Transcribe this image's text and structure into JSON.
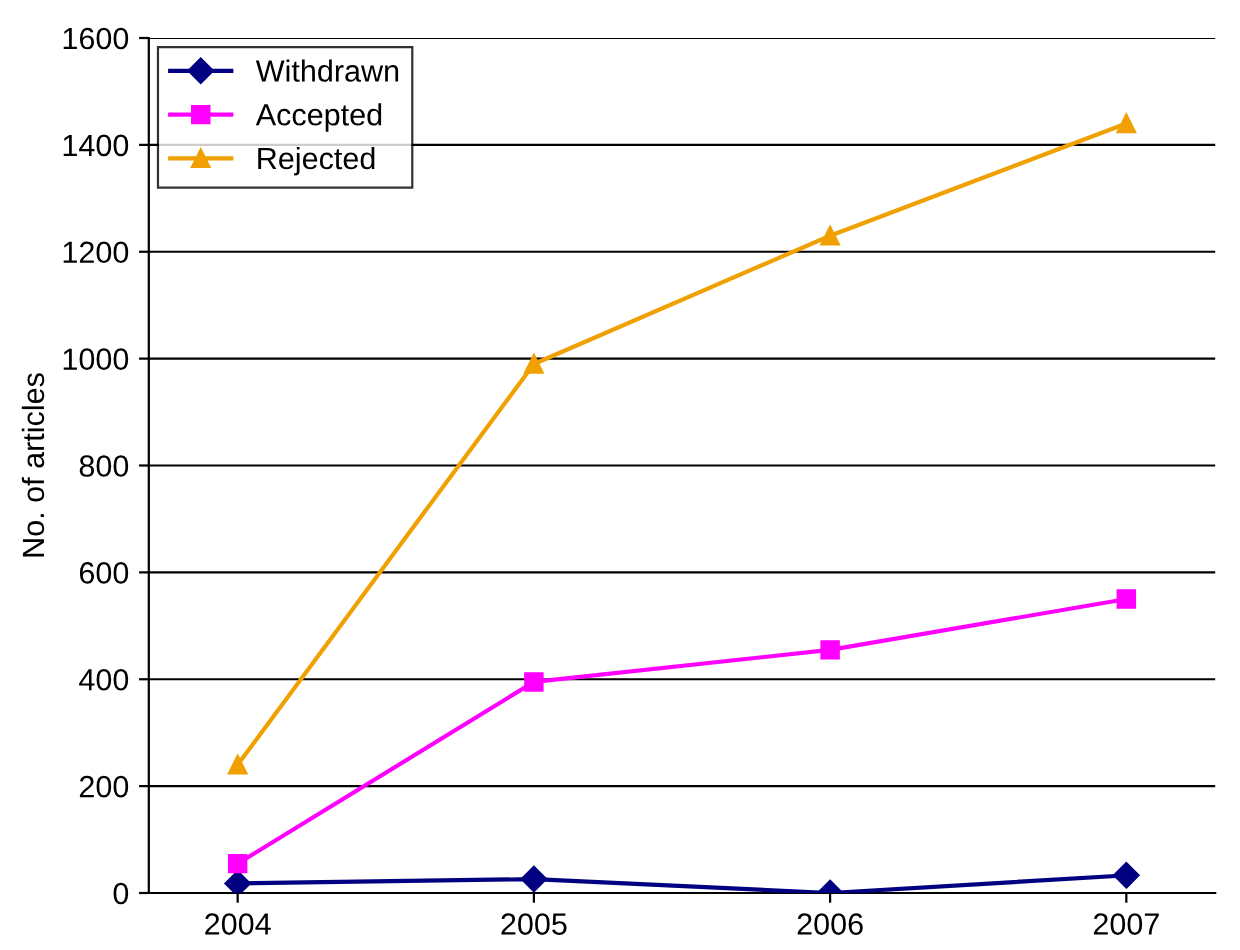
{
  "chart_data": {
    "type": "line",
    "ylabel": "No. of articles",
    "categories": [
      "2004",
      "2005",
      "2006",
      "2007"
    ],
    "series": [
      {
        "name": "Withdrawn",
        "color": "#000080",
        "marker": "diamond",
        "values": [
          18,
          26,
          0,
          33
        ]
      },
      {
        "name": "Accepted",
        "color": "#ff00ff",
        "marker": "square",
        "values": [
          55,
          395,
          455,
          550
        ]
      },
      {
        "name": "Rejected",
        "color": "#f0a000",
        "marker": "triangle",
        "values": [
          240,
          990,
          1230,
          1440
        ]
      }
    ],
    "ylim": [
      0,
      1600
    ],
    "yticks": [
      0,
      200,
      400,
      600,
      800,
      1000,
      1200,
      1400,
      1600
    ],
    "grid": "y",
    "legend": "top left"
  }
}
